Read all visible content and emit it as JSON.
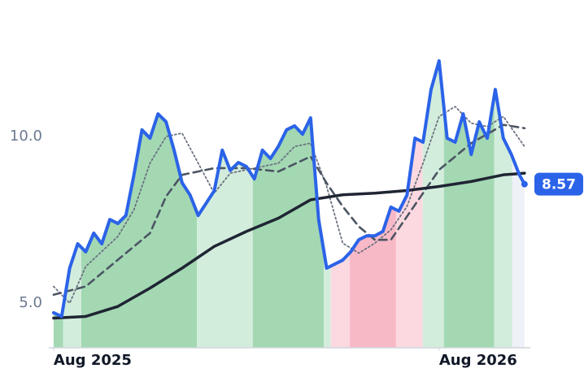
{
  "chart_data": {
    "type": "line",
    "xlim": [
      -0.15,
      14.84
    ],
    "ylim": [
      3.66,
      13.5
    ],
    "xticks": [
      {
        "value": 0,
        "label": "Aug 2025"
      },
      {
        "value": 12,
        "label": "Aug 2026"
      }
    ],
    "yticks": [
      {
        "value": 5,
        "label": "5.0"
      },
      {
        "value": 10,
        "label": "10.0"
      }
    ],
    "grid": false,
    "bands": [
      {
        "from": -0.08,
        "to": 0.3,
        "color": "#a3d8b3"
      },
      {
        "from": 0.3,
        "to": 0.86,
        "color": "#d3eddc"
      },
      {
        "from": 0.86,
        "to": 4.46,
        "color": "#a3d8b3"
      },
      {
        "from": 4.46,
        "to": 6.2,
        "color": "#d3eddc"
      },
      {
        "from": 6.2,
        "to": 8.41,
        "color": "#a3d8b3"
      },
      {
        "from": 8.41,
        "to": 8.63,
        "color": "#d3eddc"
      },
      {
        "from": 8.63,
        "to": 9.22,
        "color": "#fcd9e0"
      },
      {
        "from": 9.22,
        "to": 10.66,
        "color": "#f8b9c7"
      },
      {
        "from": 10.66,
        "to": 11.49,
        "color": "#fcd9e0"
      },
      {
        "from": 11.49,
        "to": 12.15,
        "color": "#d3eddc"
      },
      {
        "from": 12.15,
        "to": 13.72,
        "color": "#a3d8b3"
      },
      {
        "from": 13.72,
        "to": 14.28,
        "color": "#d3eddc"
      },
      {
        "from": 14.28,
        "to": 14.66,
        "color": "#eef1f8"
      }
    ],
    "series": [
      {
        "style": "dotted",
        "color": "#6b7280",
        "x": [
          0,
          0.5,
          1,
          2,
          2.5,
          3,
          3.5,
          4,
          4.5,
          5,
          5.5,
          6,
          7,
          7.5,
          8,
          8.5,
          9,
          9.5,
          10,
          10.5,
          11,
          11.5,
          12,
          12.5,
          13,
          13.5,
          14,
          14.66
        ],
        "values": [
          5.5,
          5.0,
          6.1,
          7.0,
          7.8,
          9.2,
          10.0,
          10.1,
          9.2,
          8.3,
          8.9,
          9.0,
          9.2,
          9.7,
          9.8,
          8.5,
          6.8,
          6.5,
          6.8,
          7.2,
          7.9,
          9.2,
          10.6,
          10.9,
          10.4,
          10.3,
          10.6,
          9.7
        ]
      },
      {
        "style": "dashed",
        "color": "#4b5563",
        "x": [
          0,
          1,
          2,
          3,
          3.5,
          4,
          5,
          6,
          7,
          8,
          8.5,
          9,
          9.5,
          10,
          10.5,
          11,
          11.5,
          12,
          12.5,
          13,
          14,
          14.66
        ],
        "values": [
          5.25,
          5.5,
          6.3,
          7.1,
          8.2,
          8.85,
          9.05,
          9.05,
          8.95,
          9.4,
          8.6,
          7.9,
          7.3,
          6.9,
          6.9,
          7.6,
          8.3,
          9.0,
          9.4,
          9.8,
          10.35,
          10.25
        ]
      },
      {
        "style": "solid",
        "color": "#1f2533",
        "x": [
          0,
          1,
          2,
          3,
          4,
          5,
          6,
          7,
          8,
          9,
          10,
          11,
          12,
          13,
          14,
          14.66
        ],
        "values": [
          4.55,
          4.6,
          4.9,
          5.45,
          6.05,
          6.7,
          7.15,
          7.55,
          8.1,
          8.25,
          8.3,
          8.38,
          8.5,
          8.65,
          8.85,
          8.9
        ]
      },
      {
        "style": "price",
        "color": "#2b63e8",
        "x": [
          0,
          0.25,
          0.5,
          0.75,
          1,
          1.25,
          1.5,
          1.75,
          2,
          2.25,
          2.5,
          2.75,
          3,
          3.25,
          3.5,
          3.75,
          4,
          4.25,
          4.5,
          4.75,
          5,
          5.25,
          5.5,
          5.75,
          6,
          6.25,
          6.5,
          6.75,
          7,
          7.25,
          7.5,
          7.75,
          8,
          8.25,
          8.5,
          8.75,
          9,
          9.25,
          9.5,
          9.75,
          10,
          10.25,
          10.5,
          10.75,
          11,
          11.25,
          11.5,
          11.75,
          12,
          12.25,
          12.5,
          12.75,
          13,
          13.25,
          13.5,
          13.75,
          14,
          14.25,
          14.5,
          14.66
        ],
        "values": [
          4.71,
          4.6,
          6.05,
          6.78,
          6.54,
          7.1,
          6.78,
          7.51,
          7.39,
          7.63,
          8.85,
          10.2,
          9.95,
          10.68,
          10.44,
          9.59,
          8.61,
          8.24,
          7.63,
          8.0,
          8.37,
          9.59,
          8.98,
          9.22,
          9.1,
          8.73,
          9.59,
          9.34,
          9.71,
          10.2,
          10.32,
          10.07,
          10.56,
          7.51,
          6.05,
          6.17,
          6.29,
          6.54,
          6.9,
          7.02,
          7.02,
          7.15,
          7.88,
          7.76,
          8.24,
          9.95,
          9.83,
          11.41,
          12.27,
          9.95,
          9.83,
          10.68,
          9.46,
          10.44,
          9.95,
          11.41,
          9.95,
          9.46,
          8.85,
          8.57
        ]
      }
    ]
  }
}
